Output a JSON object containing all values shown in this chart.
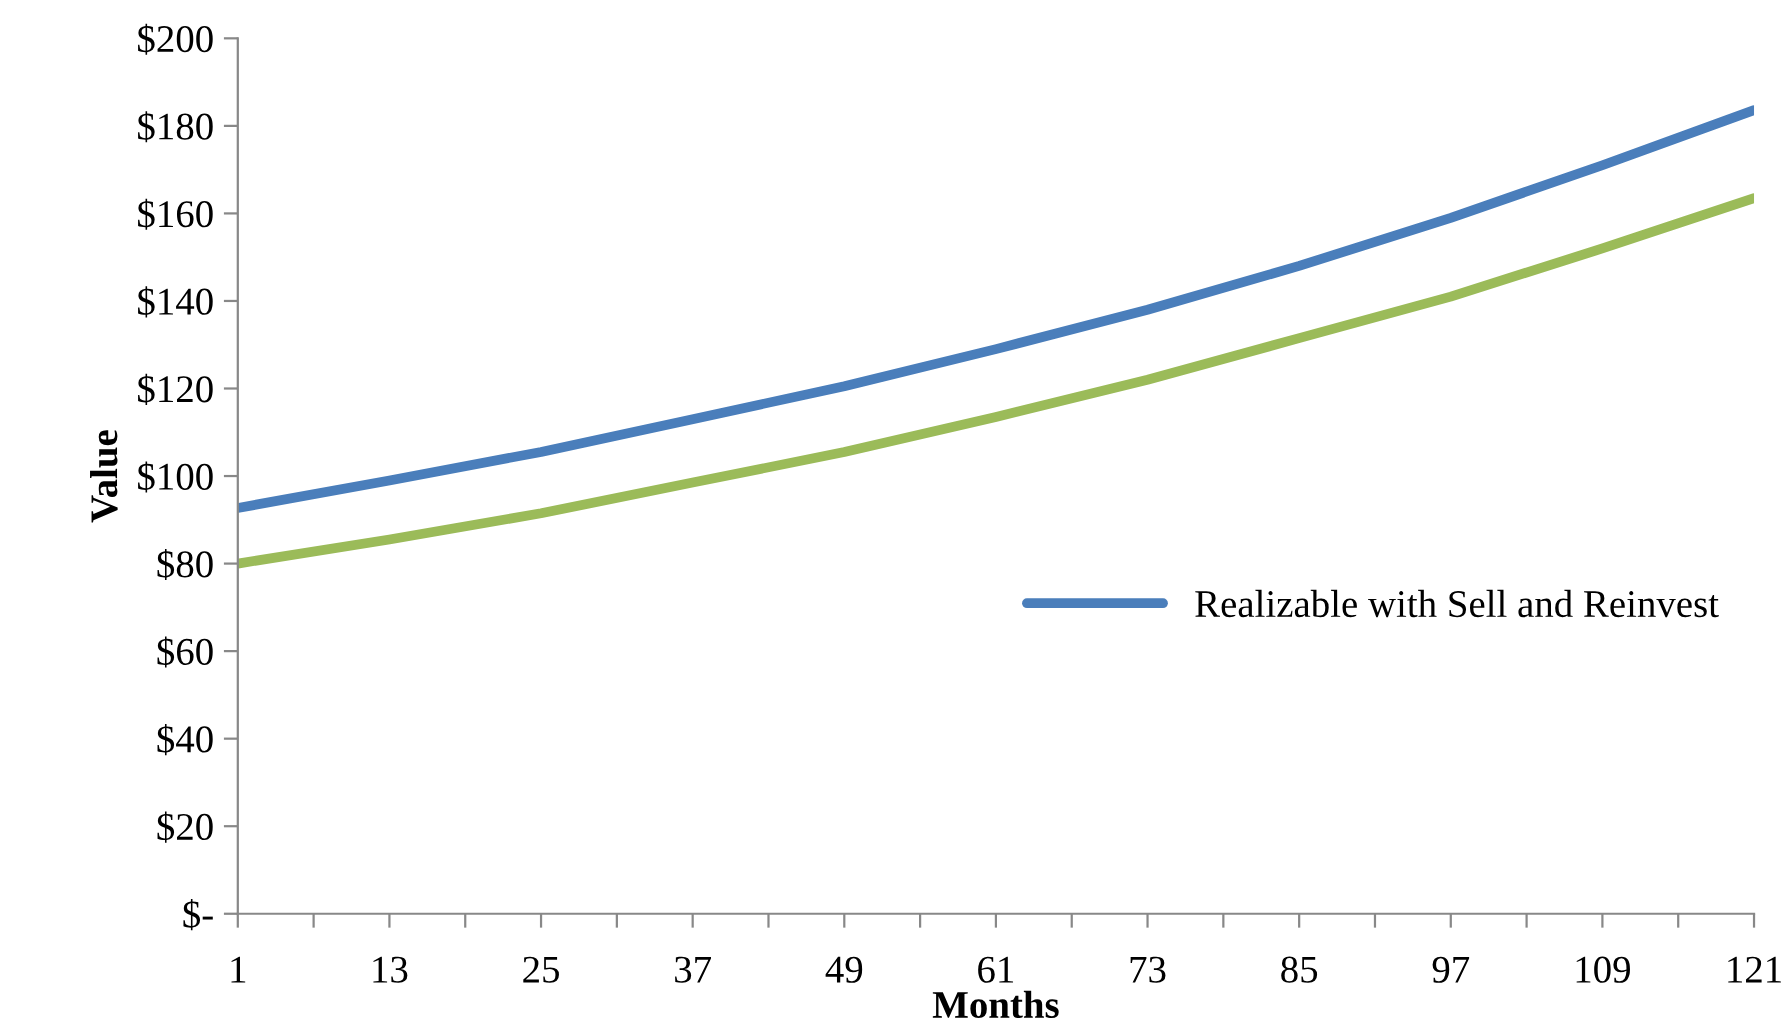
{
  "chart_data": {
    "type": "line",
    "xlabel": "Months",
    "ylabel": "Value",
    "x": [
      1,
      13,
      25,
      37,
      49,
      61,
      73,
      85,
      97,
      109,
      121
    ],
    "series": [
      {
        "name": "Realizable with Sell and Reinvest",
        "color": "#4a7ebb",
        "values": [
          92.7,
          99,
          105.5,
          113,
          120.5,
          129,
          138,
          148,
          159,
          171,
          183.6
        ]
      },
      {
        "color": "#9bbb59",
        "values": [
          80,
          85.5,
          91.5,
          98.5,
          105.5,
          113.5,
          122,
          131.5,
          141,
          152,
          163.5
        ]
      }
    ],
    "xlim": [
      1,
      121
    ],
    "xticks": [
      1,
      {
        "value": 7,
        "label": null
      },
      13,
      {
        "value": 19,
        "label": null
      },
      25,
      {
        "value": 31,
        "label": null
      },
      37,
      {
        "value": 43,
        "label": null
      },
      49,
      {
        "value": 55,
        "label": null
      },
      61,
      {
        "value": 67,
        "label": null
      },
      73,
      {
        "value": 79,
        "label": null
      },
      85,
      {
        "value": 91,
        "label": null
      },
      97,
      {
        "value": 103,
        "label": null
      },
      109,
      {
        "value": 115,
        "label": null
      },
      121
    ],
    "ylim": [
      0,
      200
    ],
    "yticks": [
      {
        "value": 0,
        "label": "$-"
      },
      {
        "value": 20,
        "label": "$20"
      },
      {
        "value": 40,
        "label": "$40"
      },
      {
        "value": 60,
        "label": "$60"
      },
      {
        "value": 80,
        "label": "$80"
      },
      {
        "value": 100,
        "label": "$100"
      },
      {
        "value": 120,
        "label": "$120"
      },
      {
        "value": 140,
        "label": "$140"
      },
      {
        "value": 160,
        "label": "$160"
      },
      {
        "value": 180,
        "label": "$180"
      },
      {
        "value": 200,
        "label": "$200"
      }
    ],
    "grid": false,
    "legend": "right",
    "line_style": "solid",
    "marker": "none"
  }
}
